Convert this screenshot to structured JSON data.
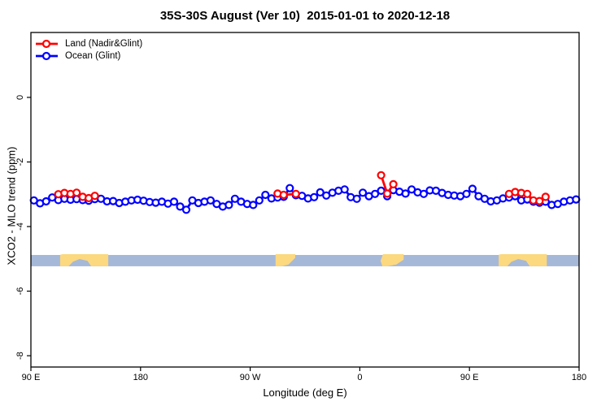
{
  "title": "35S-30S August (Ver 10)  2015-01-01 to 2020-12-18",
  "legend": {
    "items": [
      {
        "label": "Land (Nadir&Glint)",
        "color": "#ff0000"
      },
      {
        "label": "Ocean (Glint)",
        "color": "#0000ff"
      }
    ]
  },
  "colors": {
    "land_series": "#ff0000",
    "ocean_series": "#0000ff",
    "strip_ocean": "#a5b8d8",
    "strip_land": "#fcd87f",
    "frame": "#000000"
  },
  "chart_data": {
    "type": "line",
    "title": "35S-30S August (Ver 10)  2015-01-01 to 2020-12-18",
    "xlabel": "Longitude (deg E)",
    "ylabel": "XCO2 - MLO trend (ppm)",
    "grid": "off",
    "legend_position": "top-left-inside",
    "x_axis": {
      "range_lon": [
        90,
        540
      ],
      "ticks_lon": [
        90,
        180,
        270,
        360,
        450,
        540
      ],
      "tick_labels": [
        "90 E",
        "180",
        "90 W",
        "0",
        "90 E",
        "180"
      ]
    },
    "y_axis": {
      "range": [
        -8.35,
        2.01
      ],
      "ticks": [
        0,
        -2,
        -4,
        -6,
        -8
      ],
      "tick_labels": [
        "0",
        "-2",
        "-4",
        "-6",
        "-8"
      ]
    },
    "series": [
      {
        "name": "Ocean (Glint)",
        "color": "#0000ff",
        "marker": "open-circle",
        "x": [
          92.5,
          97.5,
          102.5,
          107.5,
          112.5,
          117.5,
          122.5,
          127.5,
          132.5,
          137.5,
          142.5,
          147.5,
          152.5,
          157.5,
          162.5,
          167.5,
          172.5,
          177.5,
          182.5,
          187.5,
          192.5,
          197.5,
          202.5,
          207.5,
          212.5,
          217.5,
          222.5,
          227.5,
          232.5,
          237.5,
          242.5,
          247.5,
          252.5,
          257.5,
          262.5,
          267.5,
          272.5,
          277.5,
          282.5,
          287.5,
          292.5,
          297.5,
          302.5,
          307.5,
          312.5,
          317.5,
          322.5,
          327.5,
          332.5,
          337.5,
          342.5,
          347.5,
          352.5,
          357.5,
          362.5,
          367.5,
          372.5,
          377.5,
          382.5,
          387.5,
          392.5,
          397.5,
          402.5,
          407.5,
          412.5,
          417.5,
          422.5,
          427.5,
          432.5,
          437.5,
          442.5,
          447.5,
          452.5,
          457.5,
          462.5,
          467.5,
          472.5,
          477.5,
          482.5,
          487.5,
          492.5,
          497.5,
          502.5,
          507.5,
          512.5,
          517.5,
          522.5,
          527.5,
          532.5,
          537.5
        ],
        "y": [
          -3.19,
          -3.28,
          -3.22,
          -3.1,
          -3.18,
          -3.14,
          -3.17,
          -3.15,
          -3.18,
          -3.2,
          -3.15,
          -3.14,
          -3.22,
          -3.21,
          -3.27,
          -3.23,
          -3.19,
          -3.17,
          -3.2,
          -3.24,
          -3.26,
          -3.23,
          -3.29,
          -3.23,
          -3.38,
          -3.48,
          -3.19,
          -3.27,
          -3.23,
          -3.19,
          -3.3,
          -3.38,
          -3.33,
          -3.14,
          -3.23,
          -3.3,
          -3.33,
          -3.19,
          -3.02,
          -3.13,
          -3.1,
          -3.08,
          -2.81,
          -3.03,
          -3.05,
          -3.13,
          -3.09,
          -2.94,
          -3.04,
          -2.95,
          -2.89,
          -2.85,
          -3.09,
          -3.14,
          -2.95,
          -3.06,
          -2.99,
          -2.89,
          -3.06,
          -2.87,
          -2.92,
          -2.98,
          -2.85,
          -2.94,
          -2.99,
          -2.88,
          -2.89,
          -2.96,
          -3.02,
          -3.04,
          -3.06,
          -2.99,
          -2.83,
          -3.06,
          -3.14,
          -3.22,
          -3.19,
          -3.13,
          -3.1,
          -3.06,
          -3.19,
          -3.16,
          -3.23,
          -3.26,
          -3.23,
          -3.33,
          -3.3,
          -3.23,
          -3.19,
          -3.16
        ]
      },
      {
        "name": "Land (Nadir&Glint)",
        "color": "#ff0000",
        "marker": "open-circle",
        "groups": [
          {
            "region": "australia",
            "x": [
              112.5,
              117.5,
              122.5,
              127.5,
              132.5,
              137.5,
              142.5
            ],
            "y": [
              -3.0,
              -2.96,
              -2.99,
              -2.95,
              -3.08,
              -3.12,
              -3.05
            ]
          },
          {
            "region": "south-america",
            "x": [
              292.5,
              297.5,
              307.5
            ],
            "y": [
              -2.98,
              -3.02,
              -2.99
            ]
          },
          {
            "region": "south-africa",
            "x": [
              377.5,
              382.5,
              387.5
            ],
            "y": [
              -2.41,
              -2.98,
              -2.69
            ]
          },
          {
            "region": "australia-wrap",
            "x": [
              482.5,
              487.5,
              492.5,
              497.5,
              502.5,
              507.5,
              512.5
            ],
            "y": [
              -2.99,
              -2.93,
              -2.96,
              -2.99,
              -3.19,
              -3.21,
              -3.08
            ]
          }
        ]
      }
    ],
    "map_strip": {
      "description": "latitude-band land/ocean strip",
      "ocean_color": "#a5b8d8",
      "land_color": "#fcd87f",
      "y_top_ppm": -4.88,
      "y_bottom_ppm": -5.23,
      "regions": [
        {
          "name": "australia",
          "polygon": [
            [
              114,
              1
            ],
            [
              114,
              0.05
            ],
            [
              116,
              0
            ],
            [
              153.5,
              0
            ],
            [
              153.5,
              1
            ],
            [
              139.5,
              1
            ],
            [
              136.5,
              0.55
            ],
            [
              130,
              0.4
            ],
            [
              124.5,
              0.62
            ],
            [
              121,
              1
            ]
          ]
        },
        {
          "name": "south-america",
          "polygon": [
            [
              290.8,
              0
            ],
            [
              307,
              0
            ],
            [
              307,
              0.3
            ],
            [
              301.5,
              0.85
            ],
            [
              296,
              1
            ],
            [
              290.8,
              1
            ]
          ]
        },
        {
          "name": "south-africa",
          "polygon": [
            [
              377,
              0.55
            ],
            [
              379,
              0
            ],
            [
              396,
              0
            ],
            [
              396,
              0.45
            ],
            [
              390,
              0.85
            ],
            [
              382.5,
              1
            ],
            [
              378.5,
              1
            ]
          ]
        },
        {
          "name": "australia-wrap",
          "polygon": [
            [
              474,
              1
            ],
            [
              474,
              0.05
            ],
            [
              476,
              0
            ],
            [
              513.5,
              0
            ],
            [
              513.5,
              1
            ],
            [
              499.5,
              1
            ],
            [
              496.5,
              0.55
            ],
            [
              490,
              0.4
            ],
            [
              484.5,
              0.62
            ],
            [
              481,
              1
            ]
          ]
        }
      ]
    }
  }
}
